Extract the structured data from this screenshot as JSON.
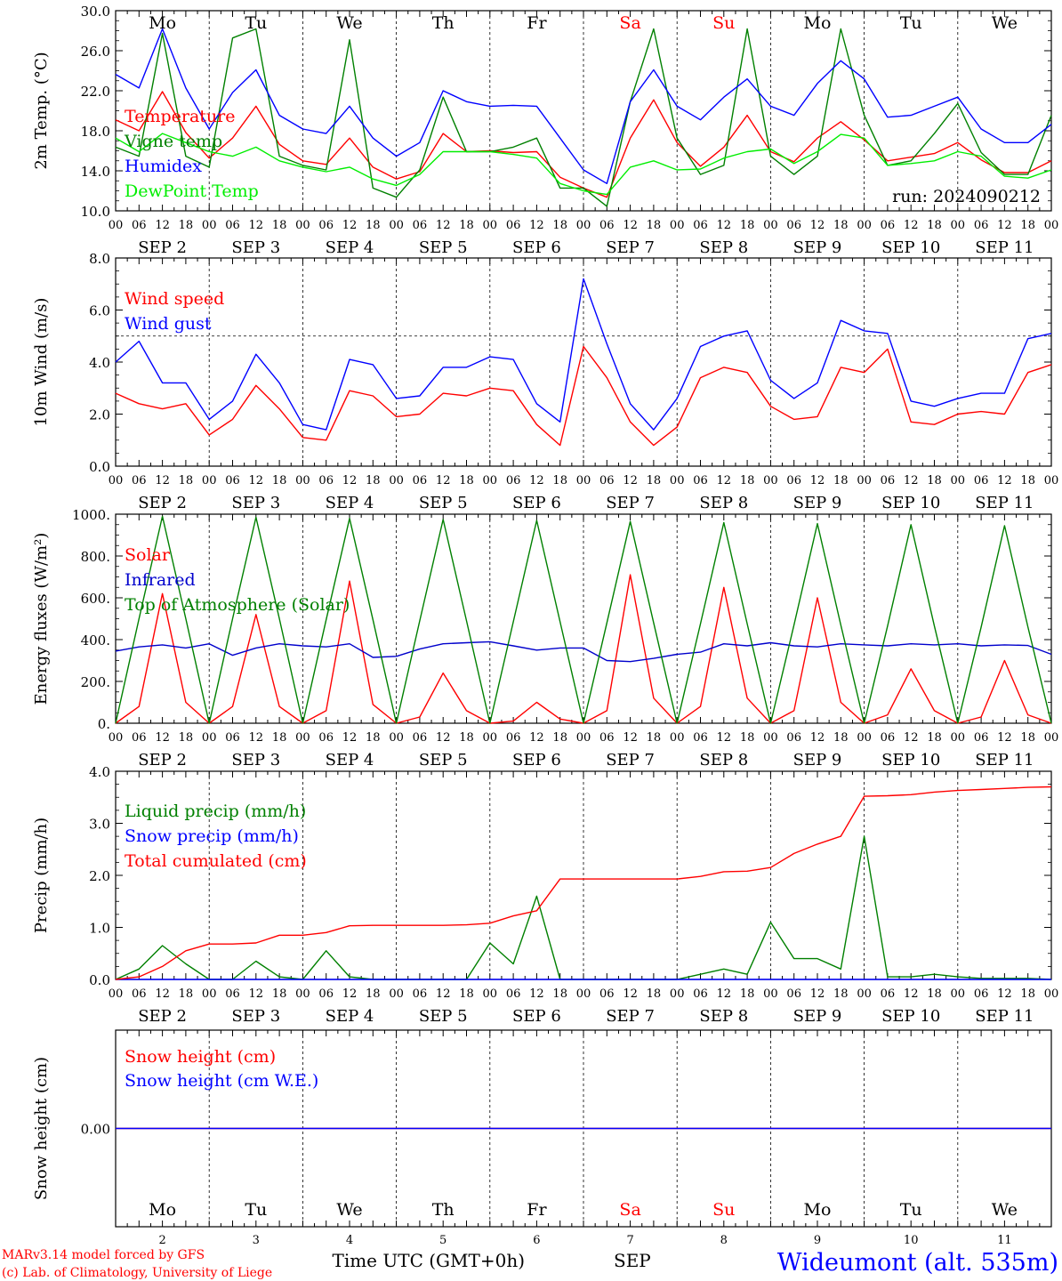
{
  "chart_data": [
    {
      "type": "line",
      "ylabel": "2m Temp. (°C)",
      "ylim": [
        10,
        32
      ],
      "yticks": [
        "10.0",
        "14.0",
        "18.0",
        "22.0",
        "26.0",
        "30.0"
      ],
      "annotation": "run: 2024090212",
      "weekdays": [
        {
          "label": "Mo",
          "color": "#000000"
        },
        {
          "label": "Tu",
          "color": "#000000"
        },
        {
          "label": "We",
          "color": "#000000"
        },
        {
          "label": "Th",
          "color": "#000000"
        },
        {
          "label": "Fr",
          "color": "#000000"
        },
        {
          "label": "Sa",
          "color": "#ff0000"
        },
        {
          "label": "Su",
          "color": "#ff0000"
        },
        {
          "label": "Mo",
          "color": "#000000"
        },
        {
          "label": "Tu",
          "color": "#000000"
        },
        {
          "label": "We",
          "color": "#000000"
        }
      ],
      "x_hours": [
        0,
        6,
        12,
        18,
        24,
        30,
        36,
        42,
        48,
        54,
        60,
        66,
        72,
        78,
        84,
        90,
        96,
        102,
        108,
        114,
        120,
        126,
        132,
        138,
        144,
        150,
        156,
        162,
        168,
        174,
        180,
        186,
        192,
        198,
        204,
        210,
        216,
        222,
        228,
        234,
        240
      ],
      "series": [
        {
          "name": "Temperature",
          "color": "#ff0000",
          "values": [
            20,
            18.8,
            23.1,
            18.6,
            15.8,
            18,
            21.5,
            17.3,
            15.5,
            15.1,
            18,
            14.8,
            13.5,
            14.3,
            18.5,
            16.5,
            16.6,
            16.4,
            16.5,
            13.7,
            12.5,
            11.5,
            18,
            22.2,
            17.5,
            14.9,
            17,
            20.5,
            16.5,
            15.4,
            18,
            19.8,
            17.8,
            15.5,
            15.9,
            16.3,
            17.5,
            15.6,
            14.2,
            14.2,
            15.5
          ]
        },
        {
          "name": "Vigne temp",
          "color": "#008000",
          "values": [
            17,
            16,
            29.5,
            16,
            14.8,
            29,
            30,
            16,
            15,
            14.5,
            28.8,
            12.5,
            11.5,
            14.5,
            22.5,
            16.5,
            16.5,
            17,
            18,
            12.5,
            12.5,
            10.5,
            22,
            30,
            18,
            14,
            15,
            30,
            16,
            14,
            16,
            30,
            20.5,
            15,
            15.5,
            18.5,
            21.8,
            16.4,
            14,
            14,
            20.5
          ]
        },
        {
          "name": "Humidex",
          "color": "#0000ff",
          "values": [
            25,
            23.5,
            30,
            23.5,
            19,
            23,
            25.5,
            20.5,
            19,
            18.5,
            21.5,
            18,
            16,
            17.5,
            23.2,
            22,
            21.5,
            21.6,
            21.5,
            18,
            14.5,
            13,
            22,
            25.5,
            21.5,
            20,
            22.5,
            24.5,
            21.5,
            20.5,
            24,
            26.5,
            24.5,
            20.3,
            20.5,
            21.5,
            22.5,
            19,
            17.5,
            17.5,
            19.5
          ]
        },
        {
          "name": "DewPoint Temp",
          "color": "#00ee00",
          "values": [
            18,
            16.5,
            18.5,
            17.5,
            16.5,
            16,
            17,
            15.5,
            14.8,
            14.3,
            14.8,
            13.5,
            12.8,
            14,
            16.5,
            16.5,
            16.5,
            16.2,
            15.8,
            13,
            12.2,
            11.8,
            14.8,
            15.5,
            14.5,
            14.6,
            15.8,
            16.5,
            16.8,
            15.2,
            16.5,
            18.4,
            18,
            15,
            15.2,
            15.5,
            16.5,
            16,
            13.8,
            13.6,
            14.5
          ]
        }
      ]
    },
    {
      "type": "line",
      "ylabel": "10m Wind (m/s)",
      "ylim": [
        0,
        8
      ],
      "yticks": [
        "0.0",
        "2.0",
        "4.0",
        "6.0",
        "8.0"
      ],
      "reference_y": 5,
      "x_hours": [
        0,
        6,
        12,
        18,
        24,
        30,
        36,
        42,
        48,
        54,
        60,
        66,
        72,
        78,
        84,
        90,
        96,
        102,
        108,
        114,
        120,
        126,
        132,
        138,
        144,
        150,
        156,
        162,
        168,
        174,
        180,
        186,
        192,
        198,
        204,
        210,
        216,
        222,
        228,
        234,
        240
      ],
      "series": [
        {
          "name": "Wind speed",
          "color": "#ff0000",
          "values": [
            2.8,
            2.4,
            2.2,
            2.4,
            1.2,
            1.8,
            3.1,
            2.2,
            1.1,
            1,
            2.9,
            2.7,
            1.9,
            2,
            2.8,
            2.7,
            3,
            2.9,
            1.6,
            0.8,
            4.6,
            3.4,
            1.7,
            0.8,
            1.5,
            3.4,
            3.8,
            3.6,
            2.3,
            1.8,
            1.9,
            3.8,
            3.6,
            4.5,
            1.7,
            1.6,
            2,
            2.1,
            2,
            3.6,
            3.9
          ]
        },
        {
          "name": "Wind gust",
          "color": "#0000ff",
          "values": [
            4,
            4.8,
            3.2,
            3.2,
            1.8,
            2.5,
            4.3,
            3.2,
            1.6,
            1.4,
            4.1,
            3.9,
            2.6,
            2.7,
            3.8,
            3.8,
            4.2,
            4.1,
            2.4,
            1.7,
            7.2,
            4.7,
            2.4,
            1.4,
            2.6,
            4.6,
            5,
            5.2,
            3.3,
            2.6,
            3.2,
            5.6,
            5.2,
            5.1,
            2.5,
            2.3,
            2.6,
            2.8,
            2.8,
            4.9,
            5.1
          ]
        }
      ]
    },
    {
      "type": "line",
      "ylabel": "Energy fluxes (W/m²)",
      "ylim": [
        0,
        1000
      ],
      "yticks": [
        "0.",
        "200.",
        "400.",
        "600.",
        "800.",
        "1000."
      ],
      "x_hours": [
        0,
        6,
        12,
        18,
        24,
        30,
        36,
        42,
        48,
        54,
        60,
        66,
        72,
        78,
        84,
        90,
        96,
        102,
        108,
        114,
        120,
        126,
        132,
        138,
        144,
        150,
        156,
        162,
        168,
        174,
        180,
        186,
        192,
        198,
        204,
        210,
        216,
        222,
        228,
        234,
        240
      ],
      "series": [
        {
          "name": "Solar",
          "color": "#ff0000",
          "values": [
            0,
            80,
            620,
            100,
            0,
            80,
            520,
            80,
            0,
            60,
            680,
            90,
            0,
            30,
            240,
            60,
            0,
            10,
            100,
            20,
            0,
            60,
            710,
            120,
            0,
            80,
            650,
            120,
            0,
            60,
            600,
            100,
            0,
            40,
            260,
            60,
            0,
            30,
            300,
            40,
            0
          ]
        },
        {
          "name": "Infrared",
          "color": "#0000cc",
          "values": [
            345,
            365,
            375,
            360,
            380,
            325,
            360,
            380,
            370,
            365,
            380,
            315,
            320,
            355,
            380,
            385,
            390,
            370,
            350,
            360,
            360,
            300,
            295,
            310,
            330,
            340,
            380,
            370,
            385,
            370,
            365,
            380,
            375,
            370,
            380,
            375,
            380,
            370,
            375,
            372,
            330
          ]
        },
        {
          "name": "Top of Atmosphere (Solar)",
          "color": "#008000",
          "values": [
            0,
            500,
            990,
            500,
            0,
            500,
            985,
            500,
            0,
            495,
            980,
            495,
            0,
            490,
            975,
            490,
            0,
            485,
            970,
            485,
            0,
            480,
            965,
            480,
            0,
            475,
            960,
            475,
            0,
            470,
            955,
            470,
            0,
            465,
            950,
            465,
            0,
            460,
            945,
            460,
            0
          ]
        }
      ]
    },
    {
      "type": "line",
      "ylabel": "Precip (mm/h)",
      "ylim": [
        0,
        4
      ],
      "yticks": [
        "0.0",
        "1.0",
        "2.0",
        "3.0",
        "4.0"
      ],
      "x_hours": [
        0,
        6,
        12,
        18,
        24,
        30,
        36,
        42,
        48,
        54,
        60,
        66,
        72,
        78,
        84,
        90,
        96,
        102,
        108,
        114,
        120,
        126,
        132,
        138,
        144,
        150,
        156,
        162,
        168,
        174,
        180,
        186,
        192,
        198,
        204,
        210,
        216,
        222,
        228,
        234,
        240
      ],
      "series": [
        {
          "name": "Liquid precip (mm/h)",
          "color": "#008000",
          "values": [
            0,
            0.2,
            0.65,
            0.3,
            0,
            0,
            0.35,
            0.05,
            0,
            0.55,
            0.05,
            0,
            0,
            0,
            0,
            0,
            0.7,
            0.3,
            1.6,
            0,
            0,
            0,
            0,
            0,
            0,
            0.1,
            0.2,
            0.1,
            1.1,
            0.4,
            0.4,
            0.2,
            2.75,
            0.05,
            0.05,
            0.1,
            0.05,
            0.02,
            0.02,
            0.02,
            0
          ]
        },
        {
          "name": "Snow precip (mm/h)",
          "color": "#0000ff",
          "values": [
            0,
            0,
            0,
            0,
            0,
            0,
            0,
            0,
            0,
            0,
            0,
            0,
            0,
            0,
            0,
            0,
            0,
            0,
            0,
            0,
            0,
            0,
            0,
            0,
            0,
            0,
            0,
            0,
            0,
            0,
            0,
            0,
            0,
            0,
            0,
            0,
            0,
            0,
            0,
            0,
            0
          ]
        },
        {
          "name": "Total cumulated (cm)",
          "color": "#ff0000",
          "values": [
            0,
            0.05,
            0.25,
            0.55,
            0.68,
            0.68,
            0.7,
            0.85,
            0.85,
            0.9,
            1.03,
            1.04,
            1.04,
            1.04,
            1.04,
            1.05,
            1.08,
            1.22,
            1.32,
            1.93,
            1.93,
            1.93,
            1.93,
            1.93,
            1.93,
            1.98,
            2.07,
            2.08,
            2.15,
            2.42,
            2.6,
            2.75,
            3.52,
            3.53,
            3.55,
            3.6,
            3.63,
            3.65,
            3.67,
            3.69,
            3.7
          ]
        }
      ]
    },
    {
      "type": "line",
      "ylabel": "Snow height (cm)",
      "yticks": [
        "0.00"
      ],
      "x_hours": [
        0,
        240
      ],
      "series": [
        {
          "name": "Snow height (cm)",
          "color": "#ff0000",
          "values": [
            0,
            0
          ]
        },
        {
          "name": "Snow height (cm W.E.)",
          "color": "#0000ff",
          "values": [
            0,
            0
          ]
        }
      ]
    }
  ],
  "axis": {
    "hour_labels": [
      "00",
      "06",
      "12",
      "18"
    ],
    "final_hour": "00",
    "month": "SEP",
    "days": [
      "2",
      "3",
      "4",
      "5",
      "6",
      "7",
      "8",
      "9",
      "10",
      "11"
    ],
    "xlabel": "Time UTC (GMT+0h)",
    "xlabel_month": "SEP"
  },
  "footer": {
    "model_line": "MARv3.14 model forced by GFS",
    "credit_line": "(c) Lab. of Climatology, University of Liege",
    "station": "Wideumont (alt. 535m)",
    "model_color": "#ff0000",
    "station_color": "#0000ff"
  }
}
